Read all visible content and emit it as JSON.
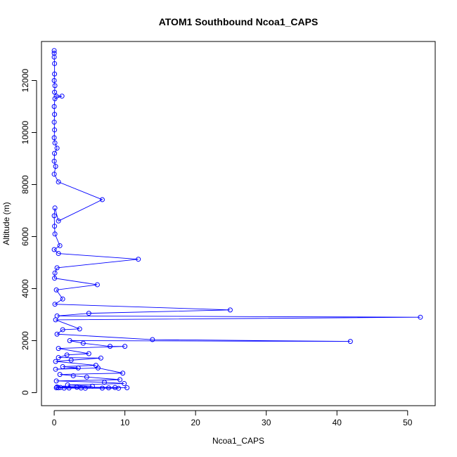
{
  "chart_data": {
    "type": "line",
    "title": "ATOM1 Southbound Ncoa1_CAPS",
    "xlabel": "Ncoa1_CAPS",
    "ylabel": "Altitude (m)",
    "xlim": [
      -1.8,
      53.9
    ],
    "ylim": [
      -500,
      13500
    ],
    "x_ticks": [
      0,
      10,
      20,
      30,
      40,
      50
    ],
    "y_ticks": [
      0,
      2000,
      4000,
      6000,
      8000,
      10000,
      12000
    ],
    "grid": false,
    "series": [
      {
        "color": "#0000ff",
        "marker": "open-circle",
        "points": [
          [
            0.0,
            13150
          ],
          [
            0.0,
            13050
          ],
          [
            0.0,
            12900
          ],
          [
            0.05,
            12650
          ],
          [
            0.05,
            12250
          ],
          [
            0.0,
            12000
          ],
          [
            0.1,
            11800
          ],
          [
            0.05,
            11550
          ],
          [
            0.3,
            11400
          ],
          [
            1.1,
            11400
          ],
          [
            0.1,
            11300
          ],
          [
            0.0,
            11000
          ],
          [
            0.05,
            10700
          ],
          [
            0.0,
            10400
          ],
          [
            0.05,
            10100
          ],
          [
            0.0,
            9800
          ],
          [
            0.1,
            9600
          ],
          [
            0.4,
            9400
          ],
          [
            0.05,
            9200
          ],
          [
            0.0,
            8900
          ],
          [
            0.2,
            8700
          ],
          [
            0.0,
            8400
          ],
          [
            0.6,
            8100
          ],
          [
            6.8,
            7420
          ],
          [
            0.6,
            6600
          ],
          [
            0.1,
            7100
          ],
          [
            0.0,
            6800
          ],
          [
            0.05,
            6400
          ],
          [
            0.1,
            6100
          ],
          [
            0.8,
            5650
          ],
          [
            0.0,
            5500
          ],
          [
            0.6,
            5350
          ],
          [
            11.9,
            5130
          ],
          [
            0.4,
            4800
          ],
          [
            0.1,
            4600
          ],
          [
            0.05,
            4400
          ],
          [
            6.1,
            4150
          ],
          [
            0.3,
            3950
          ],
          [
            1.2,
            3600
          ],
          [
            0.1,
            3400
          ],
          [
            24.9,
            3180
          ],
          [
            4.9,
            3050
          ],
          [
            0.4,
            2950
          ],
          [
            51.8,
            2900
          ],
          [
            0.2,
            2800
          ],
          [
            3.6,
            2450
          ],
          [
            1.2,
            2420
          ],
          [
            0.4,
            2250
          ],
          [
            13.9,
            2040
          ],
          [
            41.9,
            1970
          ],
          [
            2.2,
            2000
          ],
          [
            4.1,
            1900
          ],
          [
            7.9,
            1780
          ],
          [
            10.0,
            1780
          ],
          [
            0.6,
            1700
          ],
          [
            4.9,
            1500
          ],
          [
            1.8,
            1450
          ],
          [
            0.6,
            1350
          ],
          [
            6.6,
            1330
          ],
          [
            2.4,
            1250
          ],
          [
            0.2,
            1200
          ],
          [
            5.9,
            1050
          ],
          [
            1.2,
            1000
          ],
          [
            3.4,
            950
          ],
          [
            0.2,
            900
          ],
          [
            6.2,
            950
          ],
          [
            9.7,
            750
          ],
          [
            0.8,
            700
          ],
          [
            2.7,
            650
          ],
          [
            4.6,
            600
          ],
          [
            9.3,
            500
          ],
          [
            0.3,
            450
          ],
          [
            7.1,
            400
          ],
          [
            9.9,
            350
          ],
          [
            1.9,
            300
          ],
          [
            5.4,
            250
          ],
          [
            0.4,
            220
          ],
          [
            3.2,
            210
          ],
          [
            8.6,
            200
          ],
          [
            10.3,
            190
          ],
          [
            0.6,
            190
          ],
          [
            2.1,
            180
          ],
          [
            6.8,
            175
          ],
          [
            4.4,
            170
          ],
          [
            9.1,
            170
          ],
          [
            1.4,
            175
          ],
          [
            0.9,
            200
          ],
          [
            3.8,
            180
          ],
          [
            7.7,
            185
          ],
          [
            0.3,
            190
          ]
        ]
      }
    ]
  }
}
